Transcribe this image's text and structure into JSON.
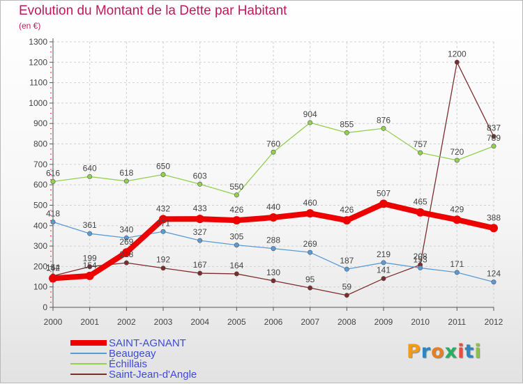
{
  "title": "Evolution du Montant de la Dette par Habitant",
  "unit_label": "(en €)",
  "logo": {
    "text": "Proxiti",
    "letters": [
      "P",
      "r",
      "o",
      "x",
      "i",
      "t",
      "i"
    ],
    "colors": [
      "#f39c12",
      "#2e86c1",
      "#e67e22",
      "#27ae60",
      "#e74c3c",
      "#2e86c1",
      "#8bc34a"
    ]
  },
  "chart_data": {
    "type": "line",
    "title": "Evolution du Montant de la Dette par Habitant",
    "ylabel": "(en €)",
    "xlabel": "",
    "x": [
      "2000",
      "2001",
      "2002",
      "2003",
      "2004",
      "2005",
      "2006",
      "2007",
      "2008",
      "2009",
      "2010",
      "2011",
      "2012"
    ],
    "ylim": [
      0,
      1300
    ],
    "yticks": [
      "0",
      "100",
      "200",
      "300",
      "400",
      "500",
      "600",
      "700",
      "800",
      "900",
      "1000",
      "1100",
      "1200",
      "1300"
    ],
    "grid": true,
    "legend_position": "bottom-left",
    "series": [
      {
        "name": "SAINT-AGNANT",
        "color": "#ee0000",
        "values": [
          142,
          154,
          269,
          432,
          433,
          426,
          440,
          460,
          426,
          507,
          465,
          429,
          388
        ]
      },
      {
        "name": "Beaugeay",
        "color": "#5b9bd5",
        "values": [
          418,
          361,
          340,
          371,
          327,
          305,
          288,
          269,
          187,
          219,
          193,
          171,
          124
        ]
      },
      {
        "name": "Échillais",
        "color": "#92d050",
        "values": [
          616,
          640,
          618,
          650,
          603,
          550,
          760,
          904,
          855,
          876,
          757,
          720,
          789
        ]
      },
      {
        "name": "Saint-Jean-d'Angle",
        "color": "#7b2d2d",
        "values": [
          154,
          199,
          218,
          192,
          167,
          164,
          130,
          95,
          59,
          141,
          208,
          1200,
          837
        ]
      }
    ]
  }
}
